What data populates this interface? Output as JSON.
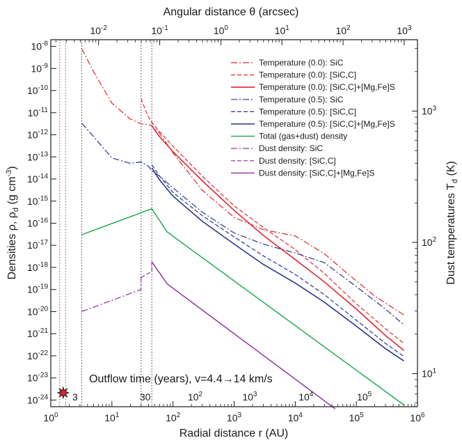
{
  "chart_data": {
    "type": "line",
    "x_axis": {
      "label": "Radial distance  r (AU)",
      "scale": "log",
      "lim": [
        1,
        1000000
      ],
      "ticks": [
        {
          "v": 1,
          "m": "10",
          "e": "0"
        },
        {
          "v": 10,
          "m": "10",
          "e": "1"
        },
        {
          "v": 100,
          "m": "10",
          "e": "2"
        },
        {
          "v": 1000,
          "m": "10",
          "e": "3"
        },
        {
          "v": 10000,
          "m": "10",
          "e": "4"
        },
        {
          "v": 100000,
          "m": "10",
          "e": "5"
        },
        {
          "v": 1000000,
          "m": "10",
          "e": "6"
        }
      ]
    },
    "top_axis": {
      "label": "Angular distance  θ (arcsec)",
      "scale": "log",
      "lim_arcsec": [
        0.00165,
        1650
      ],
      "ticks": [
        {
          "v": 0.01,
          "m": "10",
          "e": "-2"
        },
        {
          "v": 0.1,
          "m": "10",
          "e": "-1"
        },
        {
          "v": 1,
          "m": "10",
          "e": "0"
        },
        {
          "v": 10,
          "m": "10",
          "e": "1"
        },
        {
          "v": 100,
          "m": "10",
          "e": "2"
        },
        {
          "v": 1000,
          "m": "10",
          "e": "3"
        }
      ]
    },
    "y_left": {
      "label": "Densities  ρ, ρ",
      "label_sub": "d",
      "label_unit": " (g cm",
      "label_sup": "-3",
      "label_end": ")",
      "scale": "log",
      "lim": [
        5e-25,
        2e-08
      ],
      "ticks": [
        {
          "v": 1e-08,
          "m": "10",
          "e": "-8"
        },
        {
          "v": 1e-09,
          "m": "10",
          "e": "-9"
        },
        {
          "v": 1e-10,
          "m": "10",
          "e": "-10"
        },
        {
          "v": 1e-11,
          "m": "10",
          "e": "-11"
        },
        {
          "v": 1e-12,
          "m": "10",
          "e": "-12"
        },
        {
          "v": 1e-13,
          "m": "10",
          "e": "-13"
        },
        {
          "v": 1e-14,
          "m": "10",
          "e": "-14"
        },
        {
          "v": 1e-15,
          "m": "10",
          "e": "-15"
        },
        {
          "v": 1e-16,
          "m": "10",
          "e": "-16"
        },
        {
          "v": 1e-17,
          "m": "10",
          "e": "-17"
        },
        {
          "v": 1e-18,
          "m": "10",
          "e": "-18"
        },
        {
          "v": 1e-19,
          "m": "10",
          "e": "-19"
        },
        {
          "v": 1e-20,
          "m": "10",
          "e": "-20"
        },
        {
          "v": 1e-21,
          "m": "10",
          "e": "-21"
        },
        {
          "v": 1e-22,
          "m": "10",
          "e": "-22"
        },
        {
          "v": 1e-23,
          "m": "10",
          "e": "-23"
        },
        {
          "v": 1e-24,
          "m": "10",
          "e": "-24"
        }
      ]
    },
    "y_right": {
      "label": "Dust temperatures  T",
      "label_sub": "d",
      "label_end": " (K)",
      "scale": "log",
      "lim": [
        5.6,
        3500
      ],
      "ticks": [
        {
          "v": 10,
          "m": "10",
          "e": "1"
        },
        {
          "v": 100,
          "m": "10",
          "e": "2"
        },
        {
          "v": 1000,
          "m": "10",
          "e": "3"
        }
      ]
    },
    "outflow_axis": {
      "title": "Outflow time (years), v=4.4→14 km/s",
      "ticks": [
        {
          "r": 2.5,
          "text": "3"
        },
        {
          "r": 35,
          "text": "30"
        },
        {
          "r": 230,
          "m": "10",
          "e": "2"
        },
        {
          "r": 1800,
          "m": "10",
          "e": "3"
        },
        {
          "r": 15000,
          "m": "10",
          "e": "4"
        },
        {
          "r": 135000,
          "m": "10",
          "e": "5"
        }
      ]
    },
    "vlines": [
      {
        "r": 1.4,
        "color": "#d42a2a"
      },
      {
        "r": 1.75,
        "color": "#d42a2a"
      },
      {
        "r": 3.2,
        "color": "#333333"
      },
      {
        "r": 30,
        "color": "#333333"
      },
      {
        "r": 45,
        "color": "#333333"
      }
    ],
    "star_r": 1.6,
    "series": [
      {
        "name": "Temperature (0.0): SiC",
        "axis": "right",
        "color": "#e0282e",
        "dash": "9,3,2,3",
        "width": 1.2,
        "x": [
          3.2,
          5,
          10,
          20,
          30,
          40,
          45,
          60,
          100,
          300,
          1000,
          3000,
          10000,
          30000,
          60000,
          200000,
          600000
        ],
        "y": [
          3000,
          2000,
          1150,
          870,
          800,
          790,
          770,
          680,
          480,
          250,
          155,
          125,
          112,
          82,
          62,
          39,
          28
        ]
      },
      {
        "name": "Temperature (0.0): [SiC,C]",
        "axis": "right",
        "color": "#e0282e",
        "dash": "6,3",
        "width": 1.2,
        "x": [
          30,
          35,
          40,
          45,
          60,
          100,
          300,
          1000,
          3000,
          10000,
          30000,
          100000,
          300000,
          600000
        ],
        "y": [
          1250,
          1030,
          900,
          820,
          700,
          540,
          320,
          190,
          130,
          88,
          58,
          34,
          22,
          17
        ]
      },
      {
        "name": "Temperature (0.0): [SiC,C]+[Mg,Fe]S",
        "axis": "right",
        "color": "#e0282e",
        "dash": "",
        "width": 1.6,
        "x": [
          45,
          50,
          60,
          100,
          300,
          1000,
          3000,
          10000,
          30000,
          100000,
          300000,
          600000
        ],
        "y": [
          780,
          720,
          640,
          490,
          295,
          175,
          113,
          74,
          50,
          31,
          19.5,
          15
        ]
      },
      {
        "name": "Temperature (0.5): SiC",
        "axis": "right",
        "color": "#27348b",
        "dash": "9,3,2,3",
        "width": 1.2,
        "x": [
          3.2,
          5,
          10,
          20,
          30,
          40,
          45,
          60,
          100,
          300,
          1000,
          3000,
          10000,
          30000,
          100000,
          300000,
          600000
        ],
        "y": [
          810,
          640,
          440,
          400,
          410,
          380,
          350,
          320,
          260,
          170,
          118,
          97,
          83,
          70,
          46,
          31,
          23.5
        ]
      },
      {
        "name": "Temperature (0.5): [SiC,C]",
        "axis": "right",
        "color": "#27348b",
        "dash": "6,3",
        "width": 1.2,
        "x": [
          45,
          60,
          100,
          300,
          1000,
          3000,
          10000,
          30000,
          100000,
          300000,
          600000
        ],
        "y": [
          390,
          320,
          240,
          160,
          110,
          79,
          57,
          40,
          25.5,
          17,
          13.5
        ]
      },
      {
        "name": "Temperature (0.5): [SiC,C]+[Mg,Fe]S",
        "axis": "right",
        "color": "#27348b",
        "dash": "",
        "width": 1.6,
        "x": [
          45,
          60,
          100,
          300,
          1000,
          3000,
          10000,
          30000,
          100000,
          300000,
          600000
        ],
        "y": [
          370,
          300,
          225,
          145,
          97,
          68,
          49,
          35,
          23,
          15.5,
          12.5
        ]
      },
      {
        "name": "Total (gas+dust) density",
        "axis": "left",
        "color": "#1aa54a",
        "dash": "",
        "width": 1.4,
        "x": [
          3.2,
          45,
          80,
          600000
        ],
        "y": [
          3e-17,
          4.5e-16,
          4e-17,
          6e-25
        ]
      },
      {
        "name": "Dust density: SiC",
        "axis": "left",
        "color": "#8a2a9a",
        "dash": "9,3,2,3",
        "width": 1.2,
        "x": [
          3.2,
          30,
          30
        ],
        "y": [
          1e-20,
          1e-19,
          3.5e-19
        ]
      },
      {
        "name": "Dust density: [SiC,C]",
        "axis": "left",
        "color": "#8a2a9a",
        "dash": "6,3",
        "width": 1.2,
        "x": [
          30,
          45,
          45
        ],
        "y": [
          3.5e-19,
          6.5e-19,
          1.8e-18
        ]
      },
      {
        "name": "Dust density: [SiC,C]+[Mg,Fe]S",
        "axis": "left",
        "color": "#8a2a9a",
        "dash": "",
        "width": 1.4,
        "x": [
          45,
          80,
          45000
        ],
        "y": [
          1.8e-18,
          1.8e-19,
          4e-25
        ]
      }
    ]
  }
}
